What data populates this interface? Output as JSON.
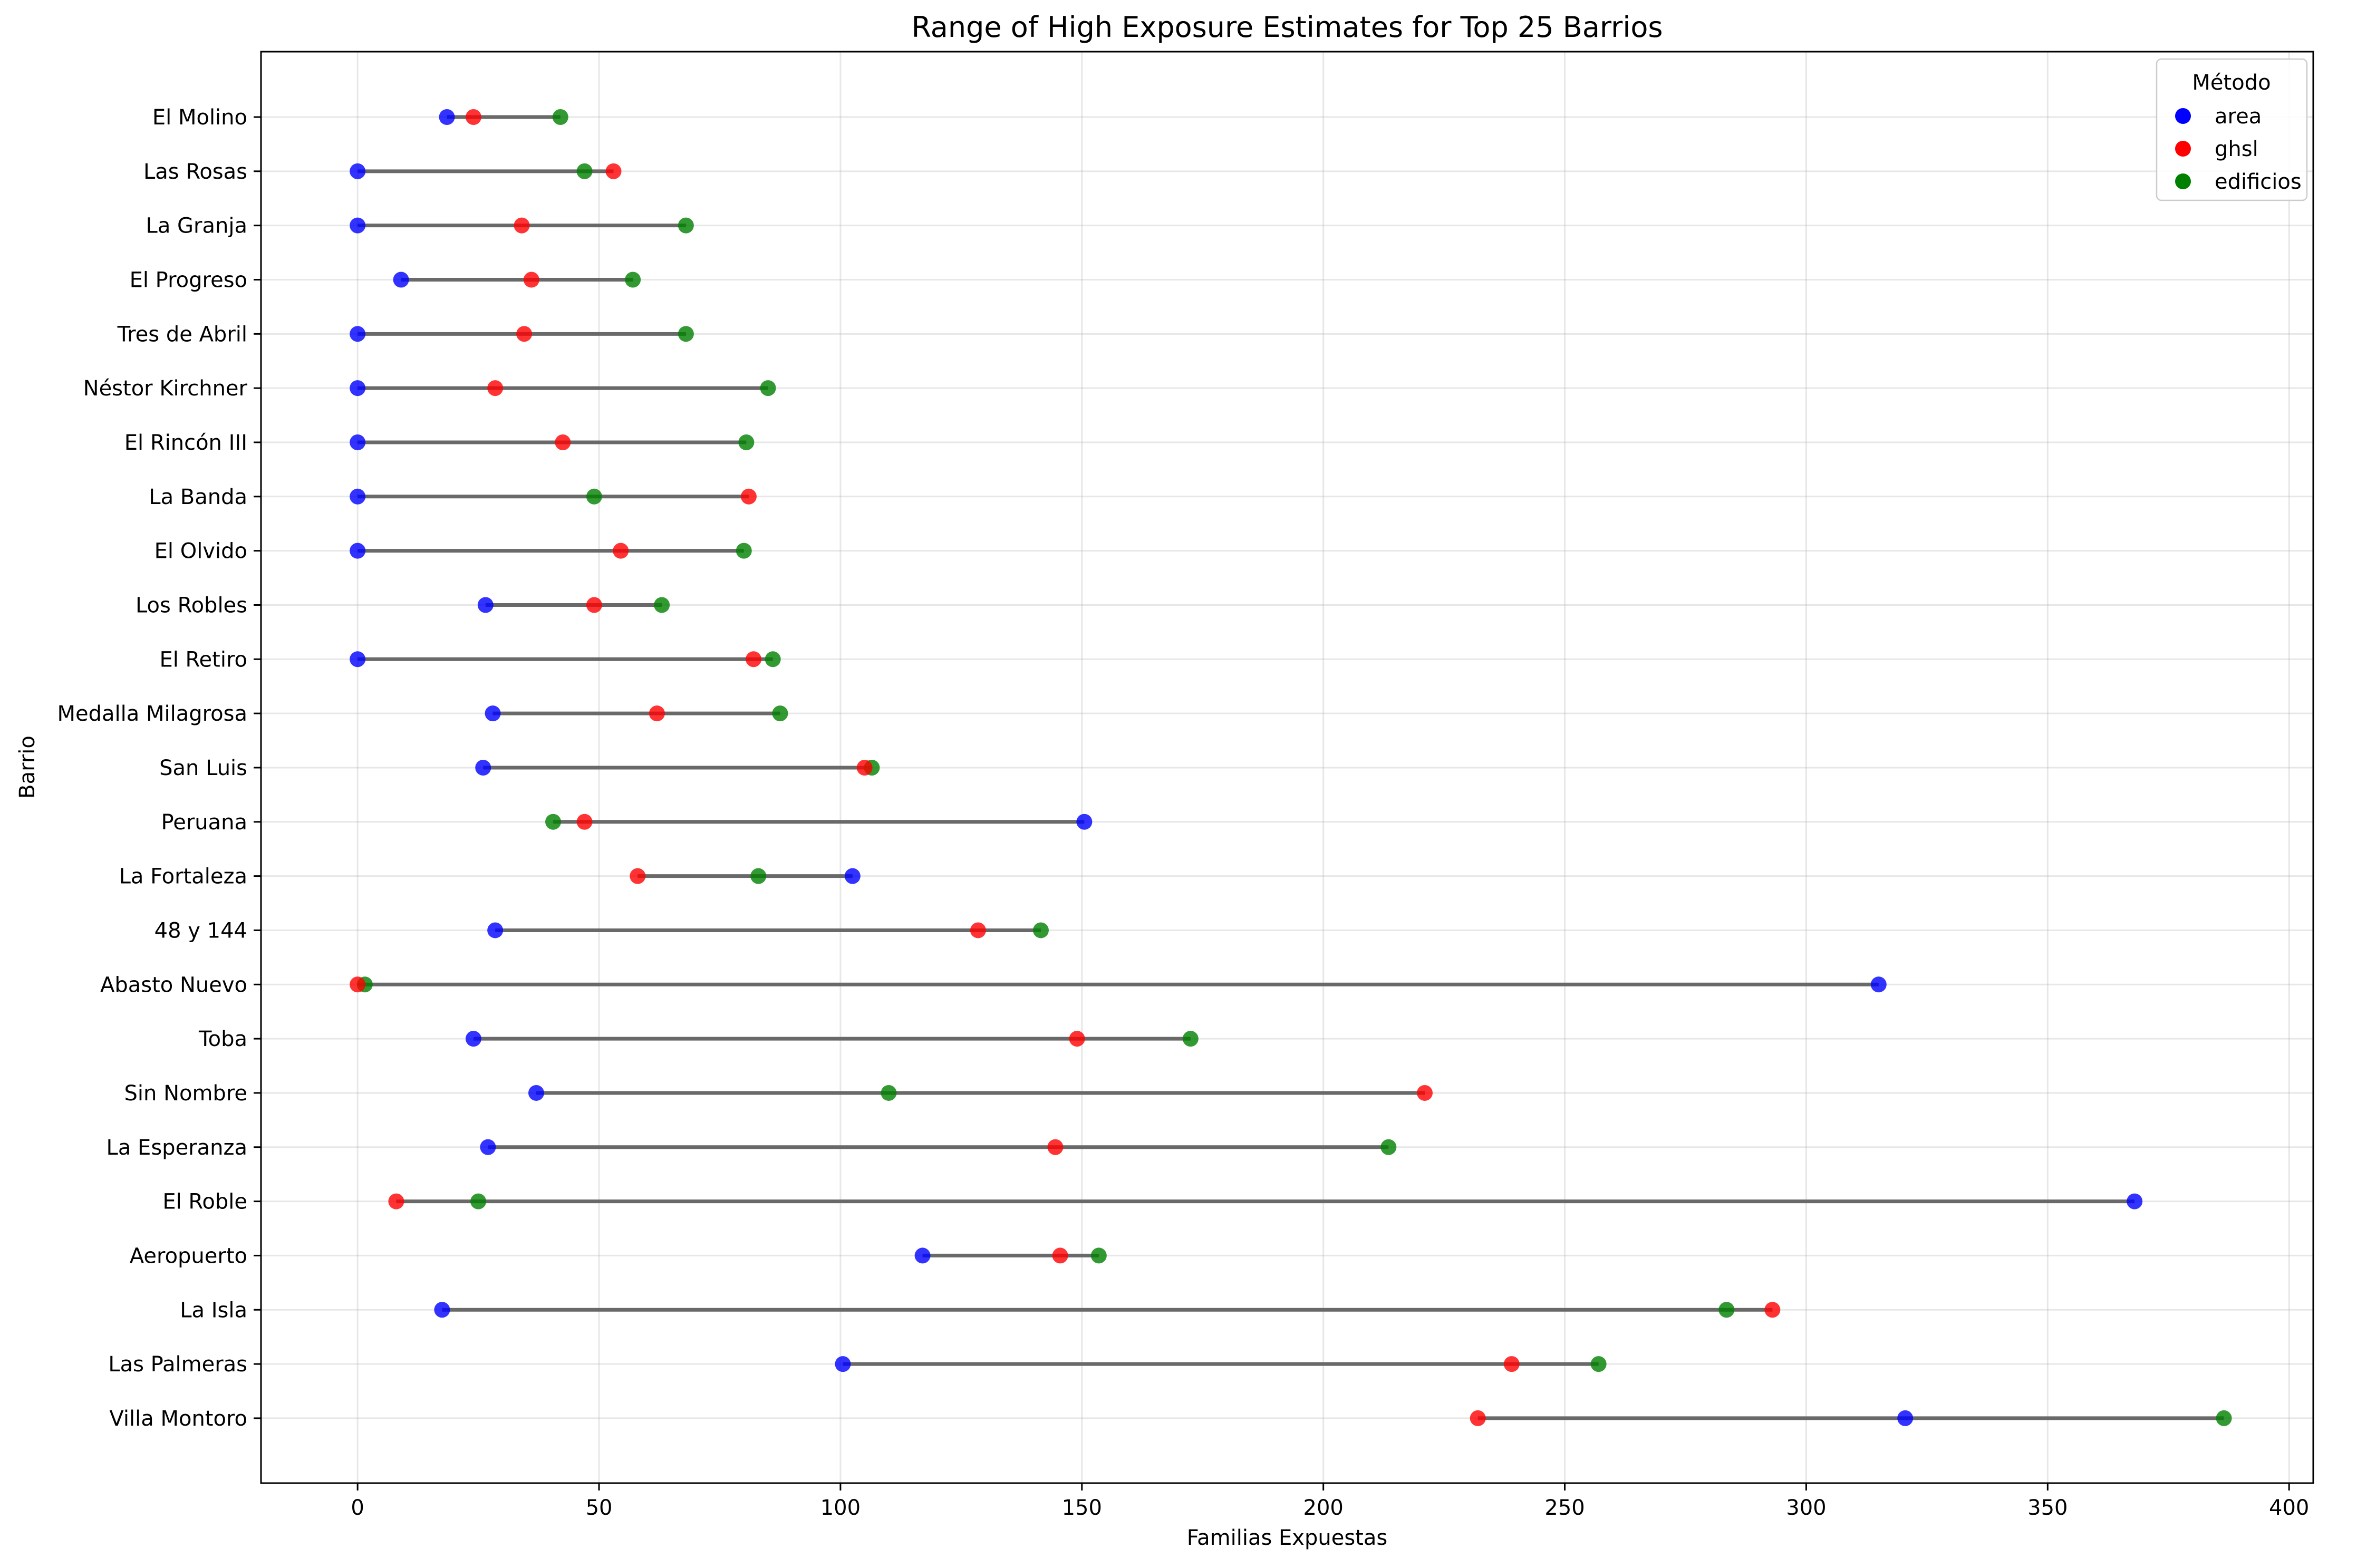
{
  "chart_data": {
    "type": "dumbbell",
    "title": "Range of High Exposure Estimates for Top 25 Barrios",
    "xlabel": "Familias Expuestas",
    "ylabel": "Barrio",
    "xlim": [
      -20,
      405
    ],
    "xticks": [
      0,
      50,
      100,
      150,
      200,
      250,
      300,
      350,
      400
    ],
    "grid": true,
    "legend": {
      "title": "Método",
      "placement": "top-right"
    },
    "series": [
      {
        "name": "area",
        "color": "#0000ff"
      },
      {
        "name": "ghsl",
        "color": "#ff0000"
      },
      {
        "name": "edificios",
        "color": "#008000"
      }
    ],
    "connector_color": "#696969",
    "categories": [
      "El Molino",
      "Las Rosas",
      "La Granja",
      "El Progreso",
      "Tres de Abril",
      "Néstor Kirchner",
      "El Rincón III",
      "La Banda",
      "El Olvido",
      "Los Robles",
      "El Retiro",
      "Medalla Milagrosa",
      "San Luis",
      "Peruana",
      "La Fortaleza",
      "48 y 144",
      "Abasto Nuevo",
      "Toba",
      "Sin Nombre",
      "La Esperanza",
      "El Roble",
      "Aeropuerto",
      "La Isla",
      "Las Palmeras",
      "Villa Montoro"
    ],
    "values": {
      "area": [
        18.5,
        0,
        0,
        9,
        0,
        0,
        0,
        0,
        0,
        26.5,
        0,
        28,
        26,
        150.5,
        102.5,
        28.5,
        315,
        24,
        37,
        27,
        368,
        117,
        17.5,
        100.5,
        320.5
      ],
      "ghsl": [
        24,
        53,
        34,
        36,
        34.5,
        28.5,
        42.5,
        81,
        54.5,
        49,
        82,
        62,
        105,
        47,
        58,
        128.5,
        0,
        149,
        221,
        144.5,
        8,
        145.5,
        293,
        239,
        232
      ],
      "edificios": [
        42,
        47,
        68,
        57,
        68,
        85,
        80.5,
        49,
        80,
        63,
        86,
        87.5,
        106.5,
        40.5,
        83,
        141.5,
        1.5,
        172.5,
        110,
        213.5,
        25,
        153.5,
        283.5,
        257,
        386.5
      ]
    }
  }
}
